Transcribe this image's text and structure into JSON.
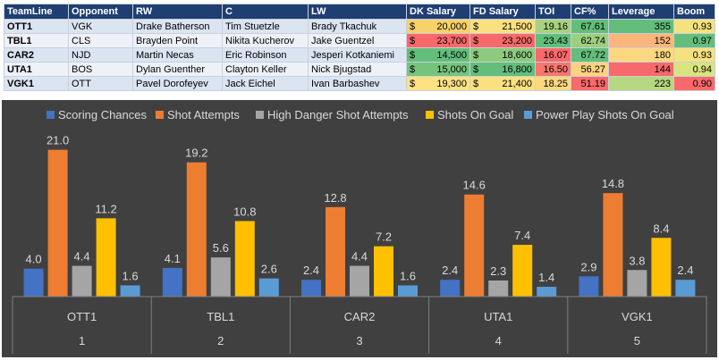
{
  "table": {
    "headers": [
      "TeamLine",
      "Opponent",
      "RW",
      "C",
      "LW",
      "DK Salary",
      "FD Salary",
      "TOI",
      "CF%",
      "Leverage",
      "Boom"
    ],
    "currency": "$",
    "rows": [
      {
        "teamline": "OTT1",
        "opponent": "VGK",
        "rw": "Drake Batherson",
        "c": "Tim Stuetzle",
        "lw": "Brady Tkachuk",
        "dk": "20,000",
        "fd": "21,500",
        "toi": "19.16",
        "cf": "67.61",
        "lev": "355",
        "boom": "0.93",
        "colors": {
          "dk": "#f8d16a",
          "fd": "#fbe07f",
          "toi": "#a8d27f",
          "cf": "#63be7b",
          "lev": "#63be7b",
          "boom": "#f5e17f"
        }
      },
      {
        "teamline": "TBL1",
        "opponent": "CLS",
        "rw": "Brayden Point",
        "c": "Nikita Kucherov",
        "lw": "Jake Guentzel",
        "dk": "23,700",
        "fd": "23,200",
        "toi": "23.43",
        "cf": "62.74",
        "lev": "152",
        "boom": "0.97",
        "colors": {
          "dk": "#f8696b",
          "fd": "#f8696b",
          "toi": "#63be7b",
          "cf": "#9ccf7e",
          "lev": "#fcb57a",
          "boom": "#63be7b"
        }
      },
      {
        "teamline": "CAR2",
        "opponent": "NJD",
        "rw": "Martin Necas",
        "c": "Eric Robinson",
        "lw": "Jesperi Kotkaniemi",
        "dk": "14,500",
        "fd": "18,600",
        "toi": "16.07",
        "cf": "67.72",
        "lev": "180",
        "boom": "0.93",
        "colors": {
          "dk": "#63be7b",
          "fd": "#8ccb7d",
          "toi": "#f8696b",
          "cf": "#63be7b",
          "lev": "#fed880",
          "boom": "#f5e17f"
        }
      },
      {
        "teamline": "UTA1",
        "opponent": "BOS",
        "rw": "Dylan Guenther",
        "c": "Clayton Keller",
        "lw": "Nick Bjugstad",
        "dk": "15,000",
        "fd": "16,800",
        "toi": "16.50",
        "cf": "56.27",
        "lev": "144",
        "boom": "0.94",
        "colors": {
          "dk": "#76c47c",
          "fd": "#63be7b",
          "toi": "#f8776d",
          "cf": "#fdd380",
          "lev": "#f8696b",
          "boom": "#d8e47f"
        }
      },
      {
        "teamline": "VGK1",
        "opponent": "OTT",
        "rw": "Pavel Dorofeyev",
        "c": "Jack Eichel",
        "lw": "Ivan Barbashev",
        "dk": "19,300",
        "fd": "21,400",
        "toi": "18.25",
        "cf": "51.19",
        "lev": "223",
        "boom": "0.90",
        "colors": {
          "dk": "#fde282",
          "fd": "#fbe07f",
          "toi": "#fed880",
          "cf": "#f8696b",
          "lev": "#b6d77f",
          "boom": "#f8696b"
        }
      }
    ]
  },
  "chart_data": {
    "type": "bar",
    "categories": [
      "OTT1",
      "TBL1",
      "CAR2",
      "UTA1",
      "VGK1"
    ],
    "category_numbers": [
      "1",
      "2",
      "3",
      "4",
      "5"
    ],
    "ylim": [
      0,
      23
    ],
    "legend_position": "top",
    "series": [
      {
        "name": "Scoring Chances",
        "color": "#4472c4",
        "values": [
          4.0,
          4.1,
          2.4,
          2.4,
          2.9
        ]
      },
      {
        "name": "Shot Attempts",
        "color": "#ed7d31",
        "values": [
          21.0,
          19.2,
          12.8,
          14.6,
          14.8
        ]
      },
      {
        "name": "High Danger Shot Attempts",
        "color": "#a5a5a5",
        "values": [
          4.4,
          5.6,
          4.4,
          2.3,
          3.8
        ]
      },
      {
        "name": "Shots On Goal",
        "color": "#ffc000",
        "values": [
          11.2,
          10.8,
          7.2,
          7.4,
          8.4
        ]
      },
      {
        "name": "Power Play Shots On Goal",
        "color": "#5b9bd5",
        "values": [
          1.6,
          2.6,
          1.6,
          1.4,
          2.4
        ]
      }
    ],
    "background": "#404040",
    "text_color": "#d9d9d9"
  }
}
